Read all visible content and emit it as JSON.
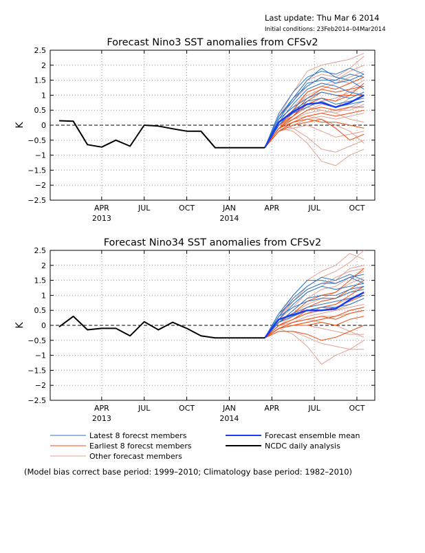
{
  "header": {
    "last_update": "Last update: Thu Mar 6 2014",
    "initial_conditions": "Initial conditions: 23Feb2014–04Mar2014"
  },
  "legend": {
    "latest": "Latest 8 forecst members",
    "earliest": "Earliest 8 forecst members",
    "other": "Other forecast members",
    "mean": "Forecast ensemble mean",
    "obs": "NCDC daily analysis"
  },
  "colors": {
    "latest": "#2a74c8",
    "earliest": "#f04a10",
    "other": "#e2a090",
    "mean": "#1a3cf0",
    "obs": "#000000"
  },
  "footnote": "(Model bias correct base period: 1999–2010; Climatology base period: 1982–2010)",
  "chart_data": [
    {
      "type": "line",
      "title": "Forecast Nino3 SST anomalies from CFSv2",
      "xlabel": "",
      "ylabel": "K",
      "xlim": [
        0,
        21
      ],
      "ylim": [
        -2.5,
        2.5
      ],
      "yticks": [
        "2.5",
        "2",
        "1.5",
        "1",
        "0.5",
        "0",
        "−0.5",
        "−1",
        "−1.5",
        "−2",
        "−2.5"
      ],
      "xticks": [
        {
          "x": 3,
          "label": "APR",
          "year": "2013"
        },
        {
          "x": 6,
          "label": "JUL",
          "year": ""
        },
        {
          "x": 9,
          "label": "OCT",
          "year": ""
        },
        {
          "x": 12,
          "label": "JAN",
          "year": "2014"
        },
        {
          "x": 15,
          "label": "APR",
          "year": ""
        },
        {
          "x": 18,
          "label": "JUL",
          "year": ""
        },
        {
          "x": 21,
          "label": "OCT",
          "year": ""
        }
      ],
      "grid": true,
      "zero_line": "dashed",
      "obs": {
        "x": [
          0,
          1,
          2,
          3,
          4,
          5,
          6,
          7,
          8,
          9,
          10,
          11,
          12,
          13,
          14,
          14.5
        ],
        "y": [
          0.15,
          0.13,
          -0.65,
          -0.73,
          -0.5,
          -0.7,
          0.0,
          -0.03,
          -0.12,
          -0.2,
          -0.2,
          -0.75,
          -0.75,
          -0.75,
          -0.75,
          -0.75
        ]
      },
      "forecast_x": [
        14.5,
        15.5,
        16.5,
        17.5,
        18.5,
        19.5,
        20.5,
        21.5
      ],
      "mean": [
        -0.75,
        0.1,
        0.45,
        0.7,
        0.75,
        0.6,
        0.75,
        1.0
      ],
      "latest": [
        [
          -0.75,
          0.2,
          0.9,
          1.5,
          1.9,
          1.6,
          1.5,
          1.7
        ],
        [
          -0.75,
          0.4,
          1.1,
          1.6,
          1.8,
          1.7,
          1.9,
          1.7
        ],
        [
          -0.75,
          0.3,
          0.9,
          1.3,
          1.6,
          1.4,
          1.5,
          1.2
        ],
        [
          -0.75,
          0.1,
          0.7,
          1.2,
          1.4,
          1.3,
          1.1,
          1.0
        ],
        [
          -0.75,
          0.2,
          0.6,
          0.9,
          1.1,
          1.0,
          0.9,
          1.1
        ],
        [
          -0.75,
          0.0,
          0.5,
          0.8,
          0.9,
          0.7,
          0.8,
          0.9
        ],
        [
          -0.75,
          0.3,
          0.8,
          1.4,
          1.5,
          1.5,
          1.7,
          1.6
        ],
        [
          -0.75,
          0.1,
          0.4,
          0.6,
          0.8,
          0.6,
          0.7,
          0.8
        ]
      ],
      "earliest": [
        [
          -0.75,
          -0.1,
          0.3,
          0.8,
          1.1,
          1.0,
          1.0,
          1.0
        ],
        [
          -0.75,
          0.0,
          0.4,
          0.9,
          1.2,
          1.1,
          1.2,
          1.3
        ],
        [
          -0.75,
          -0.1,
          0.2,
          0.5,
          0.6,
          0.5,
          0.6,
          0.6
        ],
        [
          -0.75,
          -0.2,
          0.1,
          0.3,
          0.4,
          0.3,
          0.4,
          0.5
        ],
        [
          -0.75,
          0.1,
          0.5,
          1.1,
          1.3,
          1.2,
          1.4,
          1.6
        ],
        [
          -0.75,
          -0.2,
          0.0,
          0.1,
          0.2,
          -0.1,
          -0.5,
          -0.3
        ],
        [
          -0.75,
          0.0,
          0.3,
          0.7,
          0.9,
          0.8,
          1.0,
          1.4
        ],
        [
          -0.75,
          -0.1,
          0.1,
          0.2,
          0.1,
          0.1,
          0.0,
          -0.1
        ]
      ],
      "other": [
        [
          -0.75,
          0.3,
          1.1,
          1.8,
          2.0,
          2.1,
          2.2,
          2.4
        ],
        [
          -0.75,
          0.2,
          0.8,
          1.3,
          1.6,
          1.5,
          1.8,
          2.0
        ],
        [
          -0.75,
          0.1,
          0.5,
          1.0,
          1.2,
          1.4,
          1.6,
          1.8
        ],
        [
          -0.75,
          0.0,
          0.3,
          0.6,
          0.8,
          0.9,
          1.1,
          1.3
        ],
        [
          -0.75,
          -0.1,
          0.2,
          0.4,
          0.5,
          0.4,
          0.6,
          0.8
        ],
        [
          -0.75,
          -0.2,
          -0.1,
          0.0,
          -0.2,
          -0.4,
          -0.3,
          -0.2
        ],
        [
          -0.75,
          -0.1,
          -0.2,
          -0.6,
          -1.2,
          -1.35,
          -1.0,
          -0.8
        ],
        [
          -0.75,
          0.0,
          -0.1,
          -0.4,
          -0.8,
          -0.9,
          -0.7,
          -0.5
        ],
        [
          -0.75,
          0.2,
          0.6,
          1.1,
          1.3,
          1.5,
          1.4,
          1.6
        ],
        [
          -0.75,
          0.1,
          0.4,
          0.7,
          0.9,
          0.8,
          1.2,
          1.5
        ],
        [
          -0.75,
          -0.2,
          0.0,
          0.2,
          0.3,
          0.2,
          0.3,
          0.4
        ],
        [
          -0.75,
          0.0,
          0.2,
          0.5,
          0.7,
          0.6,
          0.9,
          1.1
        ],
        [
          -0.75,
          0.3,
          0.9,
          1.5,
          1.7,
          1.6,
          1.9,
          2.3
        ],
        [
          -0.75,
          -0.1,
          0.1,
          0.3,
          0.4,
          0.5,
          0.5,
          0.7
        ],
        [
          -0.75,
          0.1,
          0.3,
          0.6,
          0.5,
          0.4,
          0.2,
          0.1
        ],
        [
          -0.75,
          0.0,
          0.2,
          0.3,
          0.2,
          0.0,
          -0.2,
          -0.6
        ]
      ]
    },
    {
      "type": "line",
      "title": "Forecast Nino34 SST anomalies from CFSv2",
      "xlabel": "",
      "ylabel": "K",
      "xlim": [
        0,
        21
      ],
      "ylim": [
        -2.5,
        2.5
      ],
      "yticks": [
        "2.5",
        "2",
        "1.5",
        "1",
        "0.5",
        "0",
        "−0.5",
        "−1",
        "−1.5",
        "−2",
        "−2.5"
      ],
      "xticks": [
        {
          "x": 3,
          "label": "APR",
          "year": "2013"
        },
        {
          "x": 6,
          "label": "JUL",
          "year": ""
        },
        {
          "x": 9,
          "label": "OCT",
          "year": ""
        },
        {
          "x": 12,
          "label": "JAN",
          "year": "2014"
        },
        {
          "x": 15,
          "label": "APR",
          "year": ""
        },
        {
          "x": 18,
          "label": "JUL",
          "year": ""
        },
        {
          "x": 21,
          "label": "OCT",
          "year": ""
        }
      ],
      "grid": true,
      "zero_line": "dashed",
      "obs": {
        "x": [
          0,
          1,
          2,
          3,
          4,
          5,
          6,
          7,
          8,
          9,
          10,
          11,
          12,
          13,
          14,
          14.5
        ],
        "y": [
          -0.05,
          0.3,
          -0.15,
          -0.1,
          -0.1,
          -0.35,
          0.12,
          -0.15,
          0.1,
          -0.1,
          -0.35,
          -0.42,
          -0.42,
          -0.42,
          -0.42,
          -0.42
        ]
      },
      "forecast_x": [
        14.5,
        15.5,
        16.5,
        17.5,
        18.5,
        19.5,
        20.5,
        21.5
      ],
      "mean": [
        -0.42,
        0.2,
        0.35,
        0.5,
        0.5,
        0.55,
        0.85,
        1.1
      ],
      "latest": [
        [
          -0.42,
          0.3,
          0.9,
          1.3,
          1.6,
          1.5,
          1.7,
          1.5
        ],
        [
          -0.42,
          0.4,
          1.0,
          1.5,
          1.5,
          1.4,
          1.6,
          1.4
        ],
        [
          -0.42,
          0.2,
          0.7,
          1.1,
          1.3,
          1.2,
          1.3,
          1.4
        ],
        [
          -0.42,
          0.1,
          0.5,
          0.9,
          1.0,
          1.0,
          1.2,
          1.3
        ],
        [
          -0.42,
          0.3,
          0.6,
          0.8,
          0.9,
          0.9,
          1.1,
          1.2
        ],
        [
          -0.42,
          0.2,
          0.4,
          0.6,
          0.7,
          0.8,
          0.9,
          1.0
        ],
        [
          -0.42,
          0.4,
          0.8,
          1.2,
          1.4,
          1.4,
          1.6,
          1.7
        ],
        [
          -0.42,
          0.1,
          0.3,
          0.5,
          0.6,
          0.6,
          0.7,
          0.9
        ]
      ],
      "earliest": [
        [
          -0.42,
          0.0,
          0.2,
          0.4,
          0.5,
          0.6,
          0.8,
          1.0
        ],
        [
          -0.42,
          0.1,
          0.3,
          0.6,
          0.8,
          0.9,
          1.2,
          1.5
        ],
        [
          -0.42,
          -0.1,
          0.0,
          0.1,
          0.2,
          0.3,
          0.5,
          0.6
        ],
        [
          -0.42,
          -0.2,
          -0.2,
          -0.3,
          -0.5,
          -0.4,
          -0.2,
          0.0
        ],
        [
          -0.42,
          0.1,
          0.4,
          0.8,
          1.0,
          1.1,
          1.5,
          1.9
        ],
        [
          -0.42,
          -0.1,
          0.1,
          0.2,
          0.3,
          0.2,
          0.4,
          0.5
        ],
        [
          -0.42,
          0.0,
          0.2,
          0.5,
          0.6,
          0.7,
          1.0,
          1.3
        ],
        [
          -0.42,
          -0.1,
          0.0,
          0.0,
          0.1,
          0.0,
          0.2,
          0.3
        ]
      ],
      "other": [
        [
          -0.42,
          0.3,
          1.0,
          1.5,
          1.8,
          2.0,
          2.4,
          2.2
        ],
        [
          -0.42,
          0.2,
          0.8,
          1.2,
          1.4,
          1.5,
          1.9,
          2.0
        ],
        [
          -0.42,
          0.1,
          0.5,
          0.9,
          1.2,
          1.3,
          1.6,
          1.8
        ],
        [
          -0.42,
          0.0,
          0.3,
          0.6,
          0.8,
          0.9,
          1.1,
          1.3
        ],
        [
          -0.42,
          -0.1,
          0.1,
          0.3,
          0.4,
          0.5,
          0.7,
          0.9
        ],
        [
          -0.42,
          -0.1,
          -0.3,
          -0.7,
          -1.3,
          -1.0,
          -0.8,
          -0.5
        ],
        [
          -0.42,
          -0.2,
          -0.2,
          -0.4,
          -0.6,
          -0.7,
          -0.8,
          -0.8
        ],
        [
          -0.42,
          0.0,
          0.0,
          0.0,
          -0.1,
          -0.2,
          -0.3,
          -0.3
        ],
        [
          -0.42,
          0.2,
          0.6,
          1.1,
          1.3,
          1.6,
          1.8,
          1.9
        ],
        [
          -0.42,
          0.1,
          0.4,
          0.7,
          0.9,
          1.1,
          1.4,
          1.6
        ],
        [
          -0.42,
          -0.1,
          0.0,
          0.1,
          0.2,
          0.3,
          0.4,
          0.5
        ],
        [
          -0.42,
          0.0,
          0.2,
          0.4,
          0.6,
          0.7,
          0.9,
          1.1
        ],
        [
          -0.42,
          0.3,
          0.8,
          1.3,
          1.6,
          1.8,
          2.1,
          2.5
        ],
        [
          -0.42,
          -0.1,
          0.1,
          0.2,
          0.3,
          0.3,
          0.5,
          0.6
        ],
        [
          -0.42,
          0.1,
          0.3,
          0.5,
          0.6,
          0.5,
          0.6,
          0.7
        ],
        [
          -0.42,
          0.0,
          0.1,
          0.2,
          0.1,
          0.0,
          -0.2,
          -0.4
        ]
      ]
    }
  ]
}
